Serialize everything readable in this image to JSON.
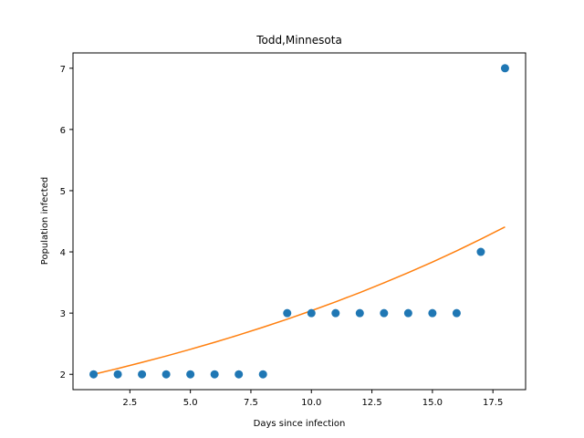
{
  "chart_data": {
    "type": "scatter",
    "title": "Todd,Minnesota",
    "xlabel": "Days since infection",
    "ylabel": "Population infected",
    "xlim": [
      0.15,
      18.85
    ],
    "ylim": [
      1.75,
      7.25
    ],
    "x_ticks": [
      2.5,
      5.0,
      7.5,
      10.0,
      12.5,
      15.0,
      17.5
    ],
    "x_tick_labels": [
      "2.5",
      "5.0",
      "7.5",
      "10.0",
      "12.5",
      "15.0",
      "17.5"
    ],
    "y_ticks": [
      2,
      3,
      4,
      5,
      6,
      7
    ],
    "y_tick_labels": [
      "2",
      "3",
      "4",
      "5",
      "6",
      "7"
    ],
    "grid": false,
    "colors": {
      "points": "#1f77b4",
      "fit": "#ff7f0e"
    },
    "series": [
      {
        "type": "scatter",
        "x": [
          1,
          2,
          3,
          4,
          5,
          6,
          7,
          8,
          9,
          10,
          11,
          12,
          13,
          14,
          15,
          16,
          17,
          18
        ],
        "y": [
          2,
          2,
          2,
          2,
          2,
          2,
          2,
          2,
          3,
          3,
          3,
          3,
          3,
          3,
          3,
          3,
          4,
          7
        ]
      },
      {
        "type": "line",
        "x": [
          1,
          2,
          3,
          4,
          5,
          6,
          7,
          8,
          9,
          10,
          11,
          12,
          13,
          14,
          15,
          16,
          17,
          18
        ],
        "y": [
          2.0,
          2.095,
          2.195,
          2.299,
          2.409,
          2.523,
          2.643,
          2.769,
          2.901,
          3.039,
          3.184,
          3.335,
          3.494,
          3.66,
          3.834,
          4.017,
          4.208,
          4.408
        ]
      }
    ]
  }
}
